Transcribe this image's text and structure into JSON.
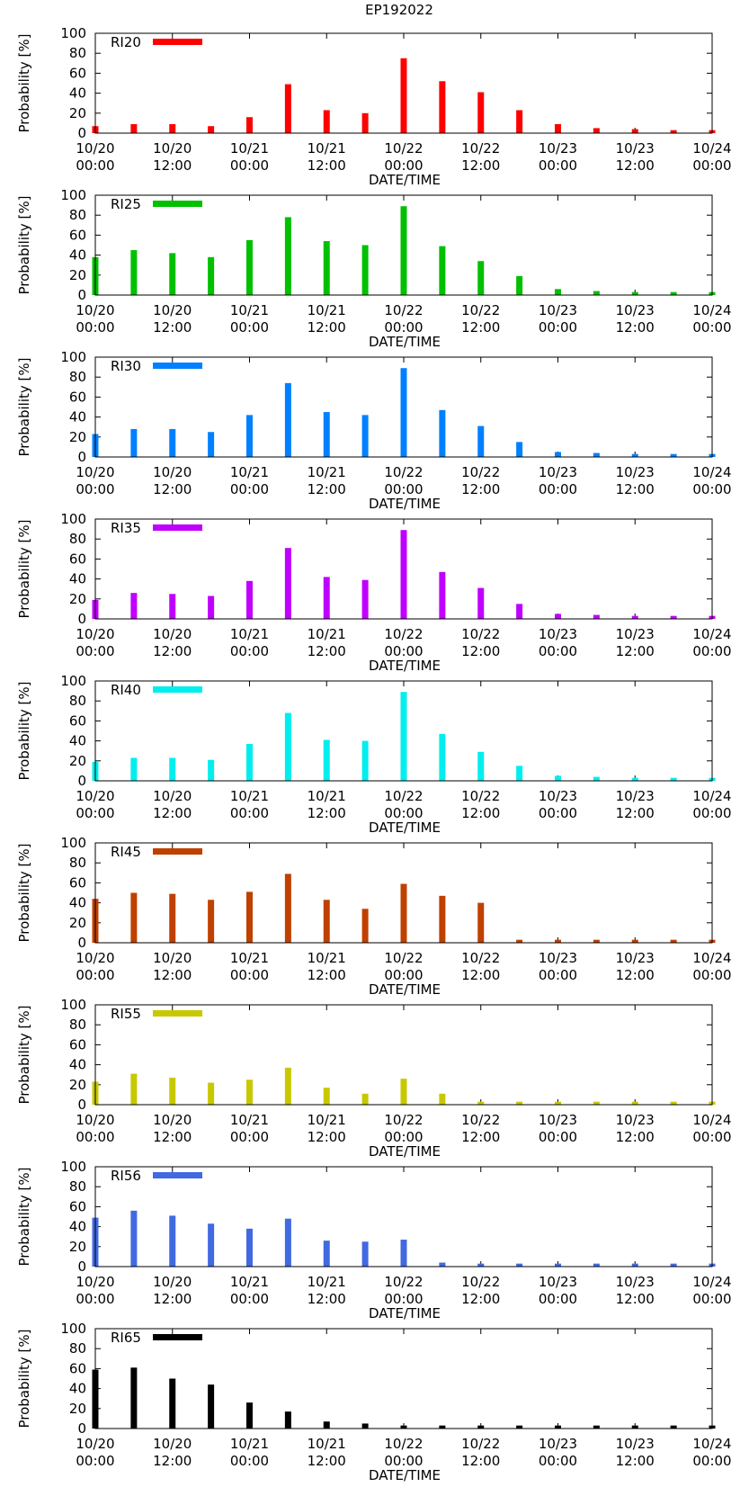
{
  "title": "EP192022",
  "chart_data": {
    "type": "bar",
    "x_ticks": [
      {
        "line1": "10/20",
        "line2": "00:00",
        "t": 0
      },
      {
        "line1": "10/20",
        "line2": "12:00",
        "t": 12
      },
      {
        "line1": "10/21",
        "line2": "00:00",
        "t": 24
      },
      {
        "line1": "10/21",
        "line2": "12:00",
        "t": 36
      },
      {
        "line1": "10/22",
        "line2": "00:00",
        "t": 48
      },
      {
        "line1": "10/22",
        "line2": "12:00",
        "t": 60
      },
      {
        "line1": "10/23",
        "line2": "00:00",
        "t": 72
      },
      {
        "line1": "10/23",
        "line2": "12:00",
        "t": 84
      },
      {
        "line1": "10/24",
        "line2": "00:00",
        "t": 96
      }
    ],
    "times": [
      0,
      6,
      12,
      18,
      24,
      30,
      36,
      42,
      48,
      54,
      60,
      66,
      72,
      78,
      84,
      90,
      96
    ],
    "xlim": [
      0,
      96
    ],
    "ylim": [
      0,
      100
    ],
    "y_ticks": [
      0,
      20,
      40,
      60,
      80,
      100
    ],
    "xlabel": "DATE/TIME",
    "ylabel": "Probability [%]",
    "panels": [
      {
        "name": "RI20",
        "color": "#ff0000",
        "values": [
          7,
          9,
          9,
          7,
          16,
          49,
          23,
          20,
          75,
          52,
          41,
          23,
          9,
          5,
          4,
          3,
          3
        ]
      },
      {
        "name": "RI25",
        "color": "#00c000",
        "values": [
          38,
          45,
          42,
          38,
          55,
          78,
          54,
          50,
          89,
          49,
          34,
          19,
          6,
          4,
          3,
          3,
          3
        ]
      },
      {
        "name": "RI30",
        "color": "#0080ff",
        "values": [
          23,
          28,
          28,
          25,
          42,
          74,
          45,
          42,
          89,
          47,
          31,
          15,
          5,
          4,
          3,
          3,
          3
        ]
      },
      {
        "name": "RI35",
        "color": "#c000ff",
        "values": [
          19,
          26,
          25,
          23,
          38,
          71,
          42,
          39,
          89,
          47,
          31,
          15,
          5,
          4,
          3,
          3,
          3
        ]
      },
      {
        "name": "RI40",
        "color": "#00eeee",
        "values": [
          19,
          23,
          23,
          21,
          37,
          68,
          41,
          40,
          89,
          47,
          29,
          15,
          5,
          4,
          3,
          3,
          3
        ]
      },
      {
        "name": "RI45",
        "color": "#c04000",
        "values": [
          44,
          50,
          49,
          43,
          51,
          69,
          43,
          34,
          59,
          47,
          40,
          3,
          3,
          3,
          3,
          3,
          3
        ]
      },
      {
        "name": "RI55",
        "color": "#c8c800",
        "values": [
          23,
          31,
          27,
          22,
          25,
          37,
          17,
          11,
          26,
          11,
          3,
          3,
          3,
          3,
          3,
          3,
          3
        ]
      },
      {
        "name": "RI56",
        "color": "#4169e1",
        "values": [
          49,
          56,
          51,
          43,
          38,
          48,
          26,
          25,
          27,
          4,
          3,
          3,
          3,
          3,
          3,
          3,
          3
        ]
      },
      {
        "name": "RI65",
        "color": "#000000",
        "values": [
          59,
          61,
          50,
          44,
          26,
          17,
          7,
          5,
          3,
          3,
          3,
          3,
          3,
          3,
          3,
          3,
          3
        ]
      }
    ]
  }
}
